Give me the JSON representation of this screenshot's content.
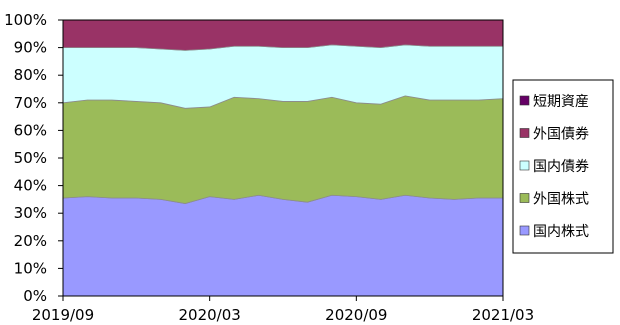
{
  "chart_data": {
    "type": "area",
    "stacked": true,
    "percent": true,
    "x": [
      "2019/09",
      "2019/10",
      "2019/11",
      "2019/12",
      "2020/01",
      "2020/02",
      "2020/03",
      "2020/04",
      "2020/05",
      "2020/06",
      "2020/07",
      "2020/08",
      "2020/09",
      "2020/10",
      "2020/11",
      "2020/12",
      "2021/01",
      "2021/02",
      "2021/03"
    ],
    "x_tick_labels": [
      "2019/09",
      "2020/03",
      "2020/09",
      "2021/03"
    ],
    "y_tick_labels": [
      "0%",
      "10%",
      "20%",
      "30%",
      "40%",
      "50%",
      "60%",
      "70%",
      "80%",
      "90%",
      "100%"
    ],
    "ylim": [
      0,
      100
    ],
    "legend_position": "right",
    "series": [
      {
        "name": "国内株式",
        "color": "#9999ff",
        "values": [
          35.5,
          36,
          35.5,
          35.5,
          35,
          33.5,
          36,
          35,
          36.5,
          35,
          34,
          36.5,
          36,
          35,
          36.5,
          35.5,
          35,
          35.5,
          35.5
        ]
      },
      {
        "name": "外国株式",
        "color": "#9bbb59",
        "values": [
          34.5,
          35,
          35.5,
          35,
          35,
          34.5,
          32.5,
          37,
          35,
          35.5,
          36.5,
          35.5,
          34,
          34.5,
          36,
          35.5,
          36,
          35.5,
          36
        ]
      },
      {
        "name": "国内債券",
        "color": "#ccffff",
        "values": [
          20,
          19,
          19,
          19.5,
          19.5,
          21,
          21,
          18.5,
          19,
          19.5,
          19.5,
          19,
          20.5,
          20.5,
          18.5,
          19.5,
          19.5,
          19.5,
          19
        ]
      },
      {
        "name": "外国債券",
        "color": "#993366",
        "values": [
          10,
          10,
          10,
          10,
          10.5,
          11,
          10.5,
          9.5,
          9.5,
          10,
          10,
          9,
          9.5,
          10,
          9,
          9.5,
          9.5,
          9.5,
          9.5
        ]
      },
      {
        "name": "短期資産",
        "color": "#660066",
        "values": [
          0,
          0,
          0,
          0,
          0,
          0,
          0,
          0,
          0,
          0,
          0,
          0,
          0,
          0,
          0,
          0,
          0,
          0,
          0
        ]
      }
    ],
    "legend_order": [
      "短期資産",
      "外国債券",
      "国内債券",
      "外国株式",
      "国内株式"
    ]
  }
}
